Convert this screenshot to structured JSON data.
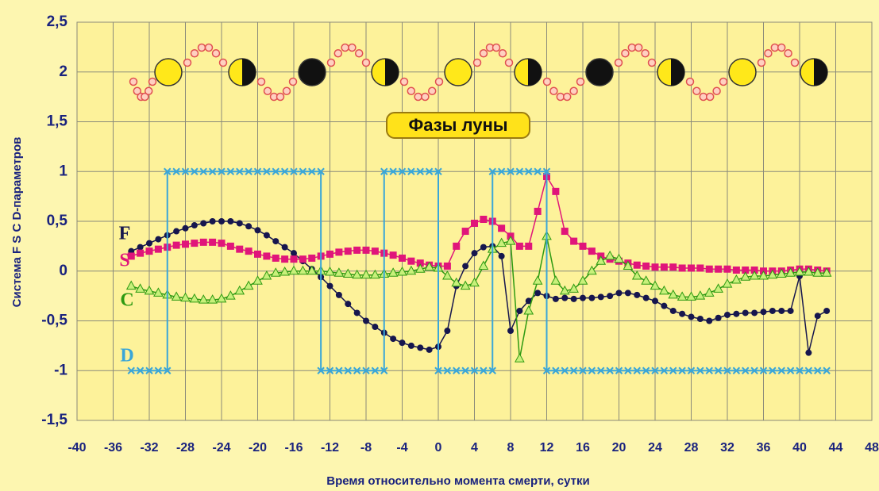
{
  "chart_data": {
    "type": "line",
    "moon_label": "Фазы луны",
    "x_label": "Время относительно момента смерти, сутки",
    "y_label": "Система F S C D-параметров",
    "x": [
      -34,
      -33,
      -32,
      -31,
      -30,
      -29,
      -28,
      -27,
      -26,
      -25,
      -24,
      -23,
      -22,
      -21,
      -20,
      -19,
      -18,
      -17,
      -16,
      -15,
      -14,
      -13,
      -12,
      -11,
      -10,
      -9,
      -8,
      -7,
      -6,
      -5,
      -4,
      -3,
      -2,
      -1,
      0,
      1,
      2,
      3,
      4,
      5,
      6,
      7,
      8,
      9,
      10,
      11,
      12,
      13,
      14,
      15,
      16,
      17,
      18,
      19,
      20,
      21,
      22,
      23,
      24,
      25,
      26,
      27,
      28,
      29,
      30,
      31,
      32,
      33,
      34,
      35,
      36,
      37,
      38,
      39,
      40,
      41,
      42,
      43
    ],
    "series": [
      {
        "name": "F",
        "color": "#16164e",
        "marker": "circle",
        "values": [
          0.2,
          0.24,
          0.28,
          0.32,
          0.36,
          0.4,
          0.43,
          0.46,
          0.48,
          0.5,
          0.5,
          0.5,
          0.48,
          0.45,
          0.41,
          0.36,
          0.3,
          0.24,
          0.18,
          0.1,
          0.02,
          -0.06,
          -0.15,
          -0.24,
          -0.33,
          -0.42,
          -0.5,
          -0.56,
          -0.62,
          -0.68,
          -0.72,
          -0.75,
          -0.77,
          -0.79,
          -0.76,
          -0.6,
          -0.15,
          0.05,
          0.18,
          0.24,
          0.25,
          0.15,
          -0.6,
          -0.4,
          -0.3,
          -0.22,
          -0.25,
          -0.28,
          -0.27,
          -0.28,
          -0.27,
          -0.27,
          -0.26,
          -0.25,
          -0.22,
          -0.22,
          -0.24,
          -0.27,
          -0.3,
          -0.35,
          -0.4,
          -0.43,
          -0.46,
          -0.48,
          -0.5,
          -0.47,
          -0.44,
          -0.43,
          -0.42,
          -0.42,
          -0.41,
          -0.4,
          -0.4,
          -0.4,
          -0.05,
          -0.82,
          -0.45,
          -0.4
        ]
      },
      {
        "name": "S",
        "color": "#e0157a",
        "marker": "square",
        "values": [
          0.15,
          0.18,
          0.2,
          0.22,
          0.24,
          0.26,
          0.27,
          0.28,
          0.29,
          0.29,
          0.28,
          0.25,
          0.22,
          0.2,
          0.17,
          0.15,
          0.13,
          0.12,
          0.12,
          0.12,
          0.13,
          0.15,
          0.17,
          0.19,
          0.2,
          0.21,
          0.21,
          0.2,
          0.18,
          0.16,
          0.13,
          0.1,
          0.08,
          0.06,
          0.05,
          0.05,
          0.25,
          0.4,
          0.48,
          0.52,
          0.5,
          0.43,
          0.35,
          0.25,
          0.25,
          0.6,
          0.95,
          0.8,
          0.4,
          0.3,
          0.25,
          0.2,
          0.15,
          0.12,
          0.1,
          0.08,
          0.06,
          0.05,
          0.04,
          0.04,
          0.04,
          0.03,
          0.03,
          0.03,
          0.02,
          0.02,
          0.02,
          0.01,
          0.01,
          0.01,
          0,
          0,
          0,
          0.01,
          0.02,
          0.02,
          0.01,
          0
        ]
      },
      {
        "name": "C",
        "color": "#2e9a12",
        "marker": "triangle",
        "values": [
          -0.15,
          -0.18,
          -0.2,
          -0.22,
          -0.24,
          -0.26,
          -0.27,
          -0.28,
          -0.29,
          -0.29,
          -0.28,
          -0.25,
          -0.2,
          -0.15,
          -0.1,
          -0.05,
          -0.02,
          -0.01,
          0,
          0,
          0,
          0,
          -0.01,
          -0.02,
          -0.03,
          -0.04,
          -0.04,
          -0.04,
          -0.03,
          -0.02,
          -0.01,
          0,
          0.02,
          0.04,
          0.03,
          -0.05,
          -0.12,
          -0.15,
          -0.12,
          0.05,
          0.22,
          0.28,
          0.3,
          -0.88,
          -0.4,
          -0.1,
          0.35,
          -0.1,
          -0.2,
          -0.18,
          -0.1,
          0,
          0.1,
          0.15,
          0.12,
          0.05,
          -0.05,
          -0.1,
          -0.15,
          -0.2,
          -0.24,
          -0.26,
          -0.26,
          -0.25,
          -0.22,
          -0.18,
          -0.13,
          -0.09,
          -0.06,
          -0.05,
          -0.05,
          -0.04,
          -0.03,
          -0.02,
          -0.01,
          -0.01,
          -0.02,
          -0.02
        ]
      },
      {
        "name": "D",
        "color": "#3aa6d8",
        "marker": "cross",
        "x": [
          -34,
          -33,
          -32,
          -31,
          -30,
          -30,
          -29,
          -28,
          -27,
          -26,
          -25,
          -24,
          -23,
          -22,
          -21,
          -20,
          -19,
          -18,
          -17,
          -16,
          -15,
          -14,
          -13,
          -13,
          -12,
          -11,
          -10,
          -9,
          -8,
          -7,
          -6,
          -6,
          -5,
          -4,
          -3,
          -2,
          -1,
          0,
          0,
          1,
          2,
          3,
          4,
          5,
          6,
          6,
          7,
          8,
          9,
          10,
          11,
          12,
          12,
          13,
          14,
          15,
          16,
          17,
          18,
          19,
          20,
          21,
          22,
          23,
          24,
          25,
          26,
          27,
          28,
          29,
          30,
          31,
          32,
          33,
          34,
          35,
          36,
          37,
          38,
          39,
          40,
          41,
          42,
          43
        ],
        "values": [
          -1,
          -1,
          -1,
          -1,
          -1,
          1,
          1,
          1,
          1,
          1,
          1,
          1,
          1,
          1,
          1,
          1,
          1,
          1,
          1,
          1,
          1,
          1,
          1,
          -1,
          -1,
          -1,
          -1,
          -1,
          -1,
          -1,
          -1,
          1,
          1,
          1,
          1,
          1,
          1,
          1,
          -1,
          -1,
          -1,
          -1,
          -1,
          -1,
          -1,
          1,
          1,
          1,
          1,
          1,
          1,
          1,
          -1,
          -1,
          -1,
          -1,
          -1,
          -1,
          -1,
          -1,
          -1,
          -1,
          -1,
          -1,
          -1,
          -1,
          -1,
          -1,
          -1,
          -1,
          -1,
          -1,
          -1,
          -1,
          -1,
          -1,
          -1,
          -1,
          -1,
          -1,
          -1,
          -1,
          -1,
          -1
        ]
      }
    ],
    "xlim": [
      -40,
      48
    ],
    "ylim": [
      -1.5,
      2.5
    ],
    "xticks": [
      -40,
      -36,
      -32,
      -28,
      -24,
      -20,
      -16,
      -12,
      -8,
      -4,
      0,
      4,
      8,
      12,
      16,
      20,
      24,
      28,
      32,
      36,
      40,
      44,
      48
    ],
    "yticks": [
      {
        "value": -1.5,
        "label": "-1,5"
      },
      -1,
      {
        "value": -0.5,
        "label": "-0,5"
      },
      0,
      {
        "value": 0.5,
        "label": "0,5"
      },
      1,
      {
        "value": 1.5,
        "label": "1,5"
      },
      2,
      {
        "value": 2.5,
        "label": "2,5"
      }
    ],
    "grid": true
  }
}
